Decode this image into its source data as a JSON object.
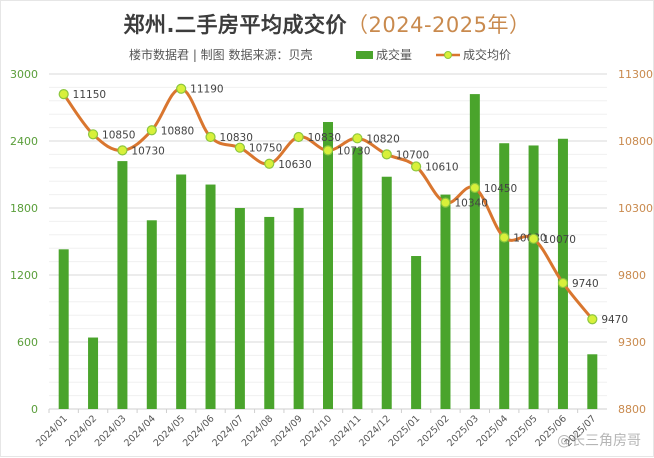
{
  "header": {
    "title_main": "郑州.二手房平均成交价",
    "title_years": "（2024-2025年）",
    "subtitle": "楼市数据君 | 制图   数据来源：贝壳"
  },
  "legend": {
    "bar_label": "成交量",
    "line_label": "成交均价"
  },
  "watermark": "@长三角房哥",
  "colors": {
    "bar": "#4aa42c",
    "line": "#d9762f",
    "marker_fill": "#d8f03a",
    "marker_stroke": "#8cc63f",
    "left_axis_text": "#5a9e3a",
    "right_axis_text": "#c98a4e",
    "title_accent": "#c98a4e"
  },
  "chart_data": {
    "type": "bar+line",
    "title": "郑州.二手房平均成交价（2024-2025年）",
    "categories": [
      "2024/01",
      "2024/02",
      "2024/03",
      "2024/04",
      "2024/05",
      "2024/06",
      "2024/07",
      "2024/08",
      "2024/09",
      "2024/10",
      "2024/11",
      "2024/12",
      "2025/01",
      "2025/02",
      "2025/03",
      "2025/04",
      "2025/05",
      "2025/06",
      "2025/07"
    ],
    "series": [
      {
        "name": "成交量",
        "type": "bar",
        "axis": "left",
        "values": [
          1430,
          640,
          2220,
          1690,
          2100,
          2010,
          1800,
          1720,
          1800,
          2570,
          2340,
          2080,
          1370,
          1920,
          2820,
          2380,
          2360,
          2420,
          490
        ]
      },
      {
        "name": "成交均价",
        "type": "line",
        "axis": "right",
        "values": [
          11150,
          10850,
          10730,
          10880,
          11190,
          10830,
          10750,
          10630,
          10830,
          10730,
          10820,
          10700,
          10610,
          10340,
          10450,
          10080,
          10070,
          9740,
          9470
        ]
      }
    ],
    "left_axis": {
      "min": 0,
      "max": 3000,
      "ticks": [
        0,
        600,
        1200,
        1800,
        2400,
        3000
      ]
    },
    "right_axis": {
      "min": 8800,
      "max": 11300,
      "ticks": [
        8800,
        9300,
        9800,
        10300,
        10800,
        11300
      ]
    },
    "grid": true,
    "legend_position": "top"
  }
}
